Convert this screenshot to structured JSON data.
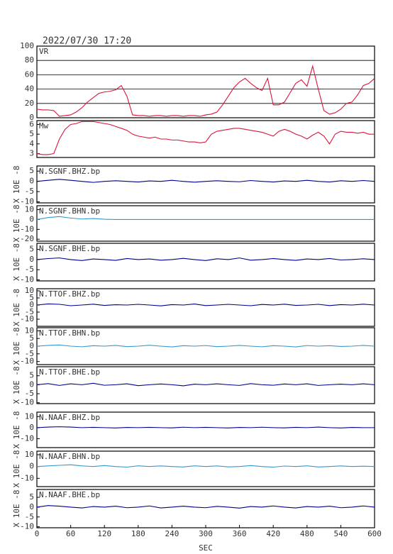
{
  "chart_data": [
    {
      "type": "line",
      "title": "2022/07/30 17:20",
      "x": [
        0,
        10,
        20,
        30,
        40,
        50,
        60,
        70,
        80,
        90,
        100,
        110,
        120,
        130,
        140,
        150,
        160,
        170,
        180,
        190,
        200,
        210,
        220,
        230,
        240,
        250,
        260,
        270,
        280,
        290,
        300,
        310,
        320,
        330,
        340,
        350,
        360,
        370,
        380,
        390,
        400,
        410,
        420,
        430,
        440,
        450,
        460,
        470,
        480,
        490,
        500,
        510,
        520,
        530,
        540,
        550,
        560,
        570,
        580,
        590,
        600
      ],
      "series": [
        {
          "name": "VR",
          "color": "#dc143c",
          "values": [
            12,
            11,
            11,
            10,
            2,
            3,
            4,
            8,
            14,
            22,
            28,
            34,
            36,
            37,
            39,
            45,
            30,
            4,
            3,
            3,
            2,
            3,
            3,
            2,
            3,
            3,
            2,
            3,
            3,
            2,
            4,
            5,
            8,
            18,
            30,
            42,
            50,
            55,
            48,
            42,
            38,
            55,
            18,
            18,
            22,
            35,
            48,
            53,
            44,
            72,
            40,
            10,
            5,
            7,
            12,
            20,
            22,
            32,
            45,
            48,
            55
          ]
        }
      ],
      "xlim": [
        0,
        600
      ],
      "ylim": [
        0,
        100
      ],
      "yticks": [
        0,
        20,
        40,
        60,
        80,
        100
      ],
      "grid": true
    },
    {
      "type": "line",
      "x": [
        0,
        10,
        20,
        30,
        40,
        50,
        60,
        70,
        80,
        90,
        100,
        110,
        120,
        130,
        140,
        150,
        160,
        170,
        180,
        190,
        200,
        210,
        220,
        230,
        240,
        250,
        260,
        270,
        280,
        290,
        300,
        310,
        320,
        330,
        340,
        350,
        360,
        370,
        380,
        390,
        400,
        410,
        420,
        430,
        440,
        450,
        460,
        470,
        480,
        490,
        500,
        510,
        520,
        530,
        540,
        550,
        560,
        570,
        580,
        590,
        600
      ],
      "series": [
        {
          "name": "Mw",
          "color": "#dc143c",
          "values": [
            3.0,
            2.9,
            2.9,
            3.0,
            4.5,
            5.5,
            6.0,
            6.1,
            6.3,
            6.3,
            6.3,
            6.2,
            6.1,
            6.0,
            5.8,
            5.6,
            5.4,
            5.0,
            4.8,
            4.7,
            4.6,
            4.7,
            4.5,
            4.5,
            4.4,
            4.4,
            4.3,
            4.2,
            4.2,
            4.1,
            4.2,
            5.0,
            5.3,
            5.4,
            5.5,
            5.6,
            5.6,
            5.5,
            5.4,
            5.3,
            5.2,
            5.0,
            4.8,
            5.3,
            5.5,
            5.3,
            5.0,
            4.8,
            4.5,
            4.9,
            5.2,
            4.8,
            4.0,
            5.0,
            5.3,
            5.2,
            5.2,
            5.1,
            5.2,
            5.0,
            5.0
          ]
        }
      ],
      "xlim": [
        0,
        600
      ],
      "ylim": [
        2.6,
        6.4
      ],
      "yticks": [
        3,
        4,
        5,
        6
      ]
    },
    {
      "type": "line",
      "ylabel": "X 10E -8",
      "x": [
        0,
        20,
        40,
        60,
        80,
        100,
        120,
        140,
        160,
        180,
        200,
        220,
        240,
        260,
        280,
        300,
        320,
        340,
        360,
        380,
        400,
        420,
        440,
        460,
        480,
        500,
        520,
        540,
        560,
        580,
        600
      ],
      "series": [
        {
          "name": "N.SGNF.BHZ.bp",
          "color": "#00008b",
          "values": [
            0,
            0.5,
            1,
            0.5,
            0,
            -0.5,
            0,
            0.3,
            0,
            -0.3,
            0.2,
            0,
            0.5,
            0,
            -0.4,
            0,
            0.3,
            0,
            -0.2,
            0.4,
            0,
            -0.3,
            0.2,
            0,
            0.5,
            0,
            -0.3,
            0.3,
            0,
            0.4,
            0
          ]
        }
      ],
      "xlim": [
        0,
        600
      ],
      "ylim": [
        -10.5,
        7.5
      ],
      "yticks": [
        5,
        0,
        -5,
        -10
      ]
    },
    {
      "type": "line",
      "ylabel": "X 10E -8",
      "x": [
        0,
        20,
        40,
        60,
        80,
        100,
        120,
        140,
        160,
        180,
        200,
        220,
        240,
        260,
        280,
        300,
        320,
        340,
        360,
        380,
        400,
        420,
        440,
        460,
        480,
        500,
        520,
        540,
        560,
        580,
        600
      ],
      "series": [
        {
          "name": "N.SGNF.BHN.bp",
          "color": "#3399cc",
          "values": [
            0,
            2,
            3,
            1.5,
            0.5,
            1,
            0.3,
            0,
            0,
            0,
            0,
            0,
            0,
            0,
            0,
            0,
            0,
            0,
            0,
            0,
            0,
            0,
            0,
            0,
            0,
            0,
            0,
            0,
            0,
            0,
            0
          ]
        }
      ],
      "xlim": [
        0,
        600
      ],
      "ylim": [
        -22,
        14
      ],
      "yticks": [
        10,
        0,
        -10,
        -20
      ]
    },
    {
      "type": "line",
      "ylabel": "X 10E -8",
      "x": [
        0,
        20,
        40,
        60,
        80,
        100,
        120,
        140,
        160,
        180,
        200,
        220,
        240,
        260,
        280,
        300,
        320,
        340,
        360,
        380,
        400,
        420,
        440,
        460,
        480,
        500,
        520,
        540,
        560,
        580,
        600
      ],
      "series": [
        {
          "name": "N.SGNF.BHE.bp",
          "color": "#00008b",
          "values": [
            0,
            0.5,
            0.8,
            0,
            -0.5,
            0.3,
            0,
            -0.4,
            0.5,
            0,
            0.3,
            -0.3,
            0,
            0.6,
            0,
            -0.5,
            0.4,
            0,
            0.8,
            -0.3,
            0,
            0.5,
            0,
            -0.4,
            0.3,
            0,
            0.5,
            -0.2,
            0,
            0.4,
            0
          ]
        }
      ],
      "xlim": [
        0,
        600
      ],
      "ylim": [
        -10.5,
        8
      ],
      "yticks": [
        5,
        0,
        -5,
        -10
      ]
    },
    {
      "type": "line",
      "ylabel": "X 10E -8",
      "x": [
        0,
        20,
        40,
        60,
        80,
        100,
        120,
        140,
        160,
        180,
        200,
        220,
        240,
        260,
        280,
        300,
        320,
        340,
        360,
        380,
        400,
        420,
        440,
        460,
        480,
        500,
        520,
        540,
        560,
        580,
        600
      ],
      "series": [
        {
          "name": "N.TTOF.BHZ.bp",
          "color": "#00008b",
          "values": [
            0,
            0.8,
            0.5,
            -0.5,
            0,
            0.6,
            -0.3,
            0.2,
            0,
            0.5,
            0,
            -0.6,
            0.3,
            0,
            0.7,
            -0.4,
            0,
            0.5,
            0,
            -0.5,
            0.4,
            0,
            0.6,
            -0.3,
            0,
            0.5,
            -0.4,
            0.3,
            0,
            0.6,
            0
          ]
        }
      ],
      "xlim": [
        0,
        600
      ],
      "ylim": [
        -15,
        11.5
      ],
      "yticks": [
        10,
        5,
        0,
        -5,
        -10
      ]
    },
    {
      "type": "line",
      "ylabel": "X 10E -8",
      "x": [
        0,
        20,
        40,
        60,
        80,
        100,
        120,
        140,
        160,
        180,
        200,
        220,
        240,
        260,
        280,
        300,
        320,
        340,
        360,
        380,
        400,
        420,
        440,
        460,
        480,
        500,
        520,
        540,
        560,
        580,
        600
      ],
      "series": [
        {
          "name": "N.TTOF.BHN.bp",
          "color": "#3399cc",
          "values": [
            0,
            0.5,
            0.8,
            0,
            -0.4,
            0.3,
            0,
            0.5,
            -0.3,
            0,
            0.6,
            0,
            -0.5,
            0.3,
            0,
            0.4,
            -0.3,
            0,
            0.5,
            0,
            -0.4,
            0.3,
            0,
            -0.5,
            0.4,
            0,
            0.3,
            -0.2,
            0,
            0.5,
            0
          ]
        }
      ],
      "xlim": [
        0,
        600
      ],
      "ylim": [
        -12,
        12
      ],
      "yticks": [
        10,
        5,
        0,
        -5,
        -10
      ]
    },
    {
      "type": "line",
      "ylabel": "X 10E -8",
      "x": [
        0,
        20,
        40,
        60,
        80,
        100,
        120,
        140,
        160,
        180,
        200,
        220,
        240,
        260,
        280,
        300,
        320,
        340,
        360,
        380,
        400,
        420,
        440,
        460,
        480,
        500,
        520,
        540,
        560,
        580,
        600
      ],
      "series": [
        {
          "name": "N.TTOF.BHE.bp",
          "color": "#00008b",
          "values": [
            0,
            0.6,
            -0.4,
            0.5,
            0,
            0.8,
            -0.3,
            0,
            0.5,
            -0.5,
            0,
            0.4,
            0,
            -0.6,
            0.3,
            0,
            0.5,
            0,
            -0.4,
            0.6,
            0,
            -0.3,
            0.4,
            0,
            0.5,
            -0.4,
            0,
            0.3,
            0,
            0.5,
            0
          ]
        }
      ],
      "xlim": [
        0,
        600
      ],
      "ylim": [
        -10.5,
        10
      ],
      "yticks": [
        5,
        0,
        -5,
        -10
      ]
    },
    {
      "type": "line",
      "ylabel": "X 10E -8",
      "x": [
        0,
        20,
        40,
        60,
        80,
        100,
        120,
        140,
        160,
        180,
        200,
        220,
        240,
        260,
        280,
        300,
        320,
        340,
        360,
        380,
        400,
        420,
        440,
        460,
        480,
        500,
        520,
        540,
        560,
        580,
        600
      ],
      "series": [
        {
          "name": "N.NAAF.BHZ.bp",
          "color": "#00008b",
          "values": [
            0,
            0.5,
            0.8,
            0.5,
            0,
            0.3,
            0,
            -0.3,
            0.2,
            0,
            0.3,
            0,
            -0.2,
            0.4,
            0,
            0.3,
            0,
            -0.3,
            0.2,
            0,
            0.4,
            0,
            -0.2,
            0.3,
            0,
            0.5,
            0,
            -0.3,
            0.2,
            0,
            0
          ]
        }
      ],
      "xlim": [
        0,
        600
      ],
      "ylim": [
        -18,
        14
      ],
      "yticks": [
        10,
        0,
        -10
      ]
    },
    {
      "type": "line",
      "ylabel": "X 10E -8",
      "x": [
        0,
        20,
        40,
        60,
        80,
        100,
        120,
        140,
        160,
        180,
        200,
        220,
        240,
        260,
        280,
        300,
        320,
        340,
        360,
        380,
        400,
        420,
        440,
        460,
        480,
        500,
        520,
        540,
        560,
        580,
        600
      ],
      "series": [
        {
          "name": "N.NAAF.BHN.bp",
          "color": "#3399cc",
          "values": [
            0,
            0.5,
            1,
            1.5,
            0.5,
            0,
            0.8,
            0,
            -0.5,
            0.6,
            0,
            0.5,
            0,
            -0.4,
            0.6,
            0,
            0.5,
            -0.3,
            0,
            0.8,
            0,
            -0.5,
            0.4,
            0,
            0.6,
            -0.4,
            0,
            0.5,
            0,
            0.3,
            0
          ]
        }
      ],
      "xlim": [
        0,
        600
      ],
      "ylim": [
        -17,
        13
      ],
      "yticks": [
        10,
        0,
        -10
      ]
    },
    {
      "type": "line",
      "ylabel": "X 10E -8",
      "xlabel": "SEC",
      "x": [
        0,
        20,
        40,
        60,
        80,
        100,
        120,
        140,
        160,
        180,
        200,
        220,
        240,
        260,
        280,
        300,
        320,
        340,
        360,
        380,
        400,
        420,
        440,
        460,
        480,
        500,
        520,
        540,
        560,
        580,
        600
      ],
      "series": [
        {
          "name": "N.NAAF.BHE.bp",
          "color": "#00008b",
          "values": [
            0,
            0.8,
            0.5,
            0,
            -0.4,
            0.3,
            0,
            0.5,
            -0.3,
            0,
            0.6,
            -0.4,
            0,
            0.5,
            0,
            -0.3,
            0.4,
            0,
            -0.5,
            0.3,
            0,
            0.6,
            0,
            -0.4,
            0.3,
            0,
            0.5,
            -0.3,
            0,
            0.6,
            0
          ]
        }
      ],
      "xlim": [
        0,
        600
      ],
      "xticks": [
        0,
        60,
        120,
        180,
        240,
        300,
        360,
        420,
        480,
        540,
        600
      ],
      "ylim": [
        -10.5,
        9
      ],
      "yticks": [
        5,
        0,
        -5,
        -10
      ]
    }
  ]
}
